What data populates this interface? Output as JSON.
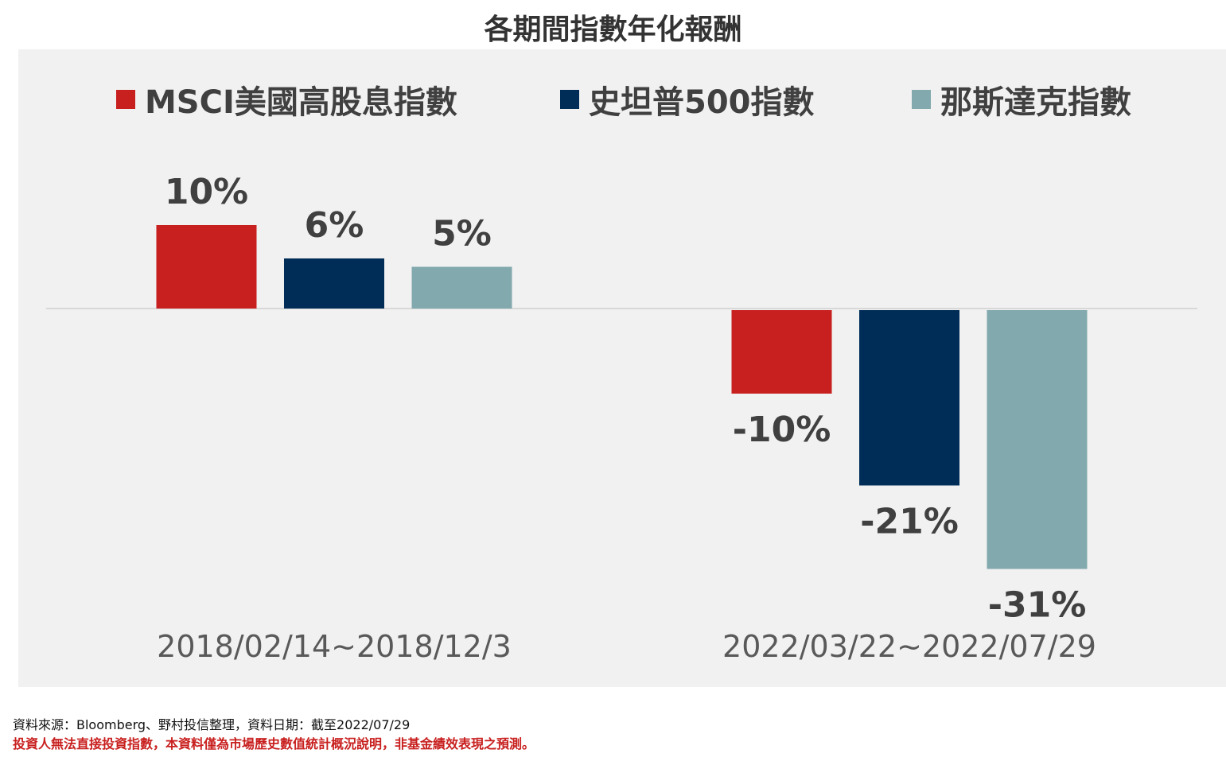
{
  "title": "各期間指數年化報酬",
  "chart_data": {
    "type": "bar",
    "title": "各期間指數年化報酬",
    "categories": [
      "2018/02/14~2018/12/3",
      "2022/03/22~2022/07/29"
    ],
    "series": [
      {
        "name": "MSCI美國高股息指數",
        "color": "#c8201f",
        "values": [
          10,
          -10
        ],
        "labels": [
          "10%",
          "-10%"
        ]
      },
      {
        "name": "史坦普500指數",
        "color": "#002d57",
        "values": [
          6,
          -21
        ],
        "labels": [
          "6%",
          "-21%"
        ]
      },
      {
        "name": "那斯達克指數",
        "color": "#82a9ad",
        "values": [
          5,
          -31
        ],
        "labels": [
          "5%",
          "-31%"
        ]
      }
    ],
    "ylim": [
      -35,
      15
    ],
    "grid": false,
    "legend_position": "top"
  },
  "footer": {
    "source": "資料來源：Bloomberg、野村投信整理，資料日期：截至2022/07/29",
    "disclaimer": "投資人無法直接投資指數，本資料僅為市場歷史數值統計概況說明，非基金績效表現之預測。"
  },
  "colors": {
    "panel_background": "#f1f1f1",
    "axis_line": "#d0d0d0",
    "text": "#404040",
    "disclaimer": "#c8201f"
  }
}
